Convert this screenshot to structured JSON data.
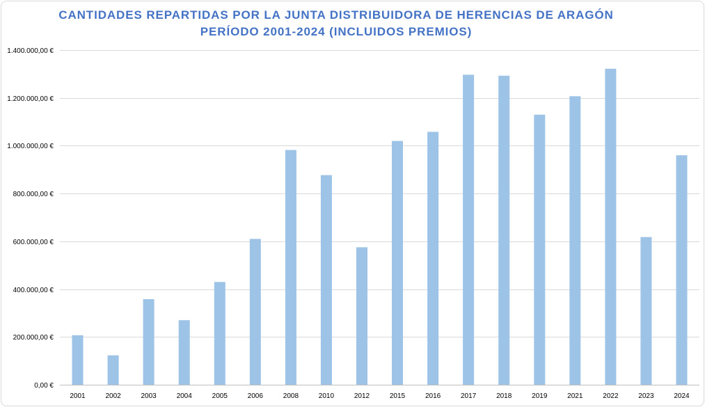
{
  "chart_data": {
    "type": "bar",
    "title": "CANTIDADES REPARTIDAS POR LA JUNTA DISTRIBUIDORA DE HERENCIAS DE ARAGÓN",
    "subtitle": "PERÍODO 2001-2024 (INCLUIDOS PREMIOS)",
    "xlabel": "",
    "ylabel": "",
    "categories": [
      "2001",
      "2002",
      "2003",
      "2004",
      "2005",
      "2006",
      "2008",
      "2010",
      "2012",
      "2015",
      "2016",
      "2017",
      "2018",
      "2019",
      "2021",
      "2022",
      "2023",
      "2024"
    ],
    "values": [
      207000,
      123000,
      358000,
      270000,
      430000,
      610000,
      982000,
      877000,
      575000,
      1020000,
      1058000,
      1297000,
      1293000,
      1130000,
      1207000,
      1322000,
      618000,
      960000
    ],
    "ylim": [
      0,
      1400000
    ],
    "yticks": [
      0,
      200000,
      400000,
      600000,
      800000,
      1000000,
      1200000,
      1400000
    ],
    "ytick_labels": [
      "0,00 €",
      "200.000,00 €",
      "400.000,00 €",
      "600.000,00 €",
      "800.000,00 €",
      "1.000.000,00 €",
      "1.200.000,00 €",
      "1.400.000,00 €"
    ],
    "grid": true,
    "legend": "none",
    "colors": {
      "bar": "#9dc3e6",
      "grid": "#d9d9d9",
      "title": "#4472c4"
    }
  }
}
